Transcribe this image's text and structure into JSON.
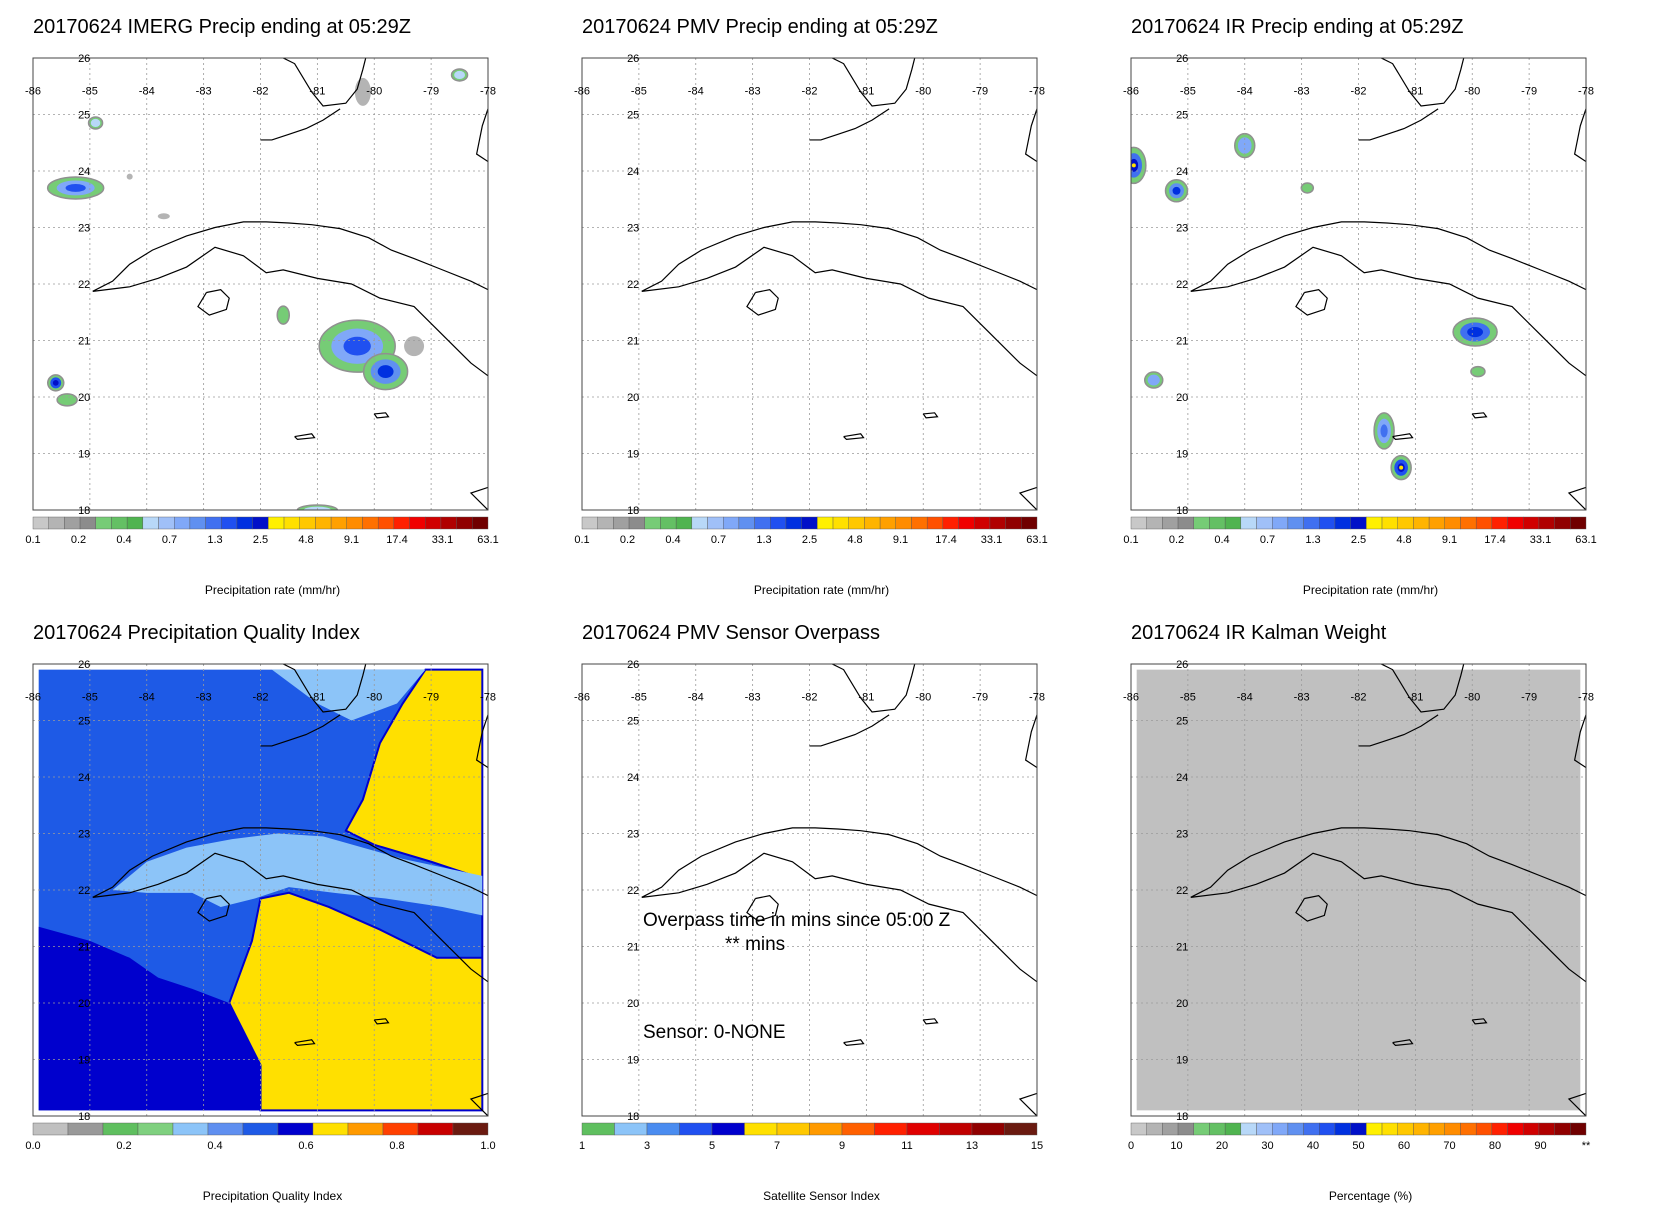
{
  "panels": [
    {
      "title": "20170624 IMERG Precip ending at 05:29Z",
      "kind": "precip",
      "map_fill": "none",
      "colorbar_label": "Precipitation rate (mm/hr)",
      "colorbar_ticks": [
        "0.1",
        "0.2",
        "0.4",
        "0.7",
        "1.3",
        "2.5",
        "4.8",
        "9.1",
        "17.4",
        "33.1",
        "63.1"
      ]
    },
    {
      "title": "20170624 PMV Precip ending at 05:29Z",
      "kind": "empty",
      "map_fill": "none",
      "colorbar_label": "Precipitation rate (mm/hr)",
      "colorbar_ticks": [
        "0.1",
        "0.2",
        "0.4",
        "0.7",
        "1.3",
        "2.5",
        "4.8",
        "9.1",
        "17.4",
        "33.1",
        "63.1"
      ]
    },
    {
      "title": "20170624 IR Precip ending at 05:29Z",
      "kind": "precip_ir",
      "map_fill": "none",
      "colorbar_label": "Precipitation rate (mm/hr)",
      "colorbar_ticks": [
        "0.1",
        "0.2",
        "0.4",
        "0.7",
        "1.3",
        "2.5",
        "4.8",
        "9.1",
        "17.4",
        "33.1",
        "63.1"
      ]
    },
    {
      "title": "20170624 Precipitation Quality Index",
      "kind": "quality",
      "map_fill": "quality",
      "colorbar_label": "Precipitation Quality Index",
      "colorbar_ticks": [
        "0.0",
        "0.2",
        "0.4",
        "0.6",
        "0.8",
        "1.0"
      ]
    },
    {
      "title": "20170624 PMV Sensor Overpass",
      "kind": "overpass",
      "map_fill": "none",
      "colorbar_label": "Satellite Sensor Index",
      "colorbar_ticks": [
        "1",
        "3",
        "5",
        "7",
        "9",
        "11",
        "13",
        "15"
      ],
      "overlay_line1": "Overpass time in mins since 05:00 Z",
      "overlay_line2": "** mins",
      "overlay_line3": "Sensor:   0-NONE"
    },
    {
      "title": "20170624 IR Kalman Weight",
      "kind": "kalman",
      "map_fill": "gray",
      "colorbar_label": "Percentage (%)",
      "colorbar_ticks": [
        "0",
        "10",
        "20",
        "30",
        "40",
        "50",
        "60",
        "70",
        "80",
        "90",
        "**"
      ]
    }
  ],
  "axes": {
    "lon_labels": [
      "-86",
      "-85",
      "-84",
      "-83",
      "-82",
      "-81",
      "-80",
      "-79",
      "-78"
    ],
    "lat_labels": [
      "26",
      "25",
      "24",
      "23",
      "22",
      "21",
      "20",
      "19",
      "18"
    ]
  },
  "colors": {
    "precip_scale": [
      "#c8c8c8",
      "#b4b4b4",
      "#a0a0a0",
      "#8c8c8c",
      "#76cc76",
      "#64c064",
      "#50b450",
      "#b8d8f8",
      "#a0c0f8",
      "#80a8f8",
      "#6090f0",
      "#4070f0",
      "#2050f0",
      "#0030e0",
      "#0010c8",
      "#fff000",
      "#ffe000",
      "#ffc800",
      "#ffb400",
      "#ffa000",
      "#ff8c00",
      "#ff7000",
      "#ff5000",
      "#ff2000",
      "#f00000",
      "#d00000",
      "#b00000",
      "#900000",
      "#700000"
    ],
    "quality_scale": [
      "#c0c0c0",
      "#999999",
      "#5fbf5f",
      "#7fd07f",
      "#8cc4f8",
      "#5f8ff0",
      "#1e5ae6",
      "#0000cd",
      "#ffe000",
      "#ff9a00",
      "#ff4000",
      "#c80000",
      "#6a1a10"
    ],
    "sensor_scale": [
      "#5fbf5f",
      "#8cc4f8",
      "#4a8cf0",
      "#2050f0",
      "#0000cd",
      "#ffe000",
      "#ffc800",
      "#ff9a00",
      "#ff6000",
      "#ff2000",
      "#e00000",
      "#c00000",
      "#900000",
      "#6a1a10"
    ],
    "kalman_scale": [
      "#c8c8c8",
      "#b4b4b4",
      "#a0a0a0",
      "#8c8c8c",
      "#76cc76",
      "#64c064",
      "#50b450",
      "#b8d8f8",
      "#a0c0f8",
      "#80a8f8",
      "#6090f0",
      "#4070f0",
      "#2050f0",
      "#0030e0",
      "#0010c8",
      "#fff000",
      "#ffe000",
      "#ffc800",
      "#ffb400",
      "#ffa000",
      "#ff8c00",
      "#ff7000",
      "#ff5000",
      "#ff2000",
      "#f00000",
      "#d00000",
      "#b00000",
      "#900000",
      "#700000"
    ],
    "kalman_fill": "#c0c0c0"
  }
}
